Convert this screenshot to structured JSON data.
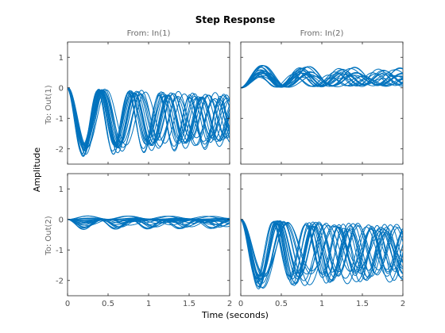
{
  "chart_data": {
    "type": "line",
    "title": "Step Response",
    "xlabel": "Time (seconds)",
    "ylabel": "Amplitude",
    "columns": [
      "From: In(1)",
      "From: In(2)"
    ],
    "rows": [
      "To: Out(1)",
      "To: Out(2)"
    ],
    "xlim": [
      0,
      2
    ],
    "ylim": [
      -2.5,
      1.5
    ],
    "xticks": [
      "0",
      "0.5",
      "1",
      "1.5",
      "2"
    ],
    "yticks": [
      "1",
      "0",
      "-1",
      "-2"
    ],
    "ytick_values": [
      1,
      0,
      -1,
      -2
    ],
    "xtick_values": [
      0,
      0.5,
      1,
      1.5,
      2
    ],
    "grid": false,
    "line_color": "#0072BD",
    "note": "Each subplot shows a family of ~20 step responses of randomly perturbed systems (damped sinusoids).",
    "panels": [
      {
        "row": 0,
        "col": 0,
        "final": -1.05,
        "amp_sign": 1,
        "amp": 1.05,
        "freq_range": [
          2.0,
          2.8
        ],
        "damping": 0.06
      },
      {
        "row": 0,
        "col": 1,
        "final": 0.3,
        "amp_sign": -1,
        "amp": 0.75,
        "freq_range": [
          1.6,
          2.3
        ],
        "damping": 0.08
      },
      {
        "row": 1,
        "col": 0,
        "final": -0.05,
        "amp_sign": -1,
        "amp": 1.05,
        "freq_range": [
          1.8,
          2.6
        ],
        "damping": 0.05
      },
      {
        "row": 1,
        "col": 1,
        "final": -1.05,
        "amp_sign": 1,
        "amp": 1.05,
        "freq_range": [
          1.7,
          2.5
        ],
        "damping": 0.06
      }
    ]
  }
}
